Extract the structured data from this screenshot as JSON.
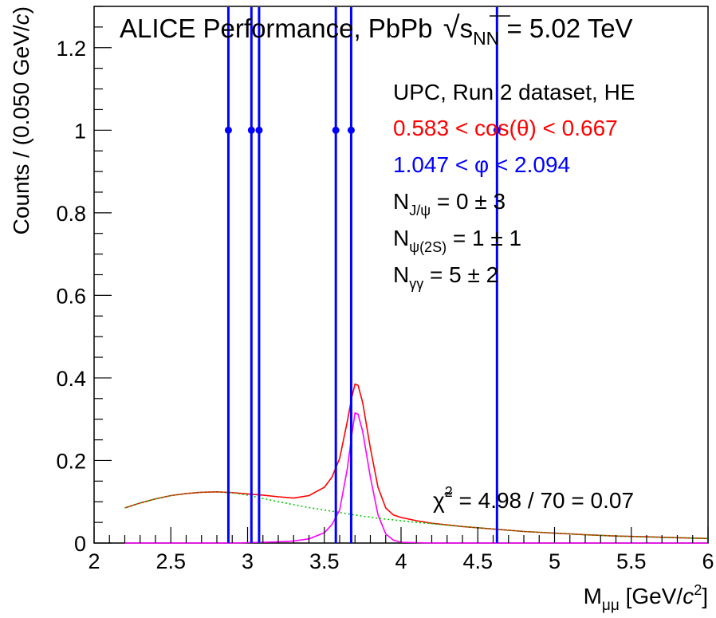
{
  "chart_data": {
    "type": "scatter",
    "title": "ALICE Performance, PbPb √sNN = 5.02 TeV",
    "title_parts": {
      "prefix": "ALICE Performance, PbPb ",
      "s": "s",
      "sub": "NN",
      "suffix": " = 5.02 TeV"
    },
    "xlabel": "Mμμ [GeV/c²]",
    "xlabel_parts": {
      "main": "M",
      "sub": "μμ",
      "unit_pre": " [GeV/",
      "unit_c": "c",
      "unit_sup": "2",
      "unit_post": "]"
    },
    "ylabel": "Counts / (0.050 GeV/c)",
    "ylabel_parts": {
      "pre": "Counts / (0.050 GeV/",
      "c": "c",
      "post": ")"
    },
    "xlim": [
      2,
      6
    ],
    "ylim": [
      0,
      1.3
    ],
    "xticks": [
      2,
      2.5,
      3,
      3.5,
      4,
      4.5,
      5,
      5.5,
      6
    ],
    "xtick_labels": [
      "2",
      "2.5",
      "3",
      "3.5",
      "4",
      "4.5",
      "5",
      "5.5",
      "6"
    ],
    "yticks": [
      0,
      0.2,
      0.4,
      0.6,
      0.8,
      1,
      1.2
    ],
    "ytick_labels": [
      "0",
      "0.2",
      "0.4",
      "0.6",
      "0.8",
      "1",
      "1.2"
    ],
    "grid": false,
    "legend": "none",
    "data_points": {
      "x": [
        2.875,
        3.025,
        3.075,
        3.575,
        3.675,
        4.625
      ],
      "y": [
        1,
        1,
        1,
        1,
        1,
        1
      ],
      "color": "#0000ff"
    },
    "curves": {
      "x": [
        2.2,
        2.3,
        2.4,
        2.5,
        2.6,
        2.7,
        2.8,
        2.9,
        3.0,
        3.1,
        3.2,
        3.3,
        3.4,
        3.5,
        3.55,
        3.6,
        3.65,
        3.68,
        3.7,
        3.72,
        3.75,
        3.8,
        3.85,
        3.9,
        3.95,
        4.0,
        4.1,
        4.2,
        4.4,
        4.6,
        4.8,
        5.0,
        5.2,
        5.4,
        5.6,
        5.8,
        6.0
      ],
      "series": [
        {
          "color": "#ff0000",
          "values": [
            0.085,
            0.097,
            0.107,
            0.115,
            0.12,
            0.123,
            0.124,
            0.122,
            0.119,
            0.116,
            0.112,
            0.109,
            0.115,
            0.135,
            0.16,
            0.205,
            0.295,
            0.355,
            0.385,
            0.382,
            0.34,
            0.23,
            0.135,
            0.085,
            0.068,
            0.062,
            0.054,
            0.048,
            0.04,
            0.034,
            0.028,
            0.024,
            0.02,
            0.017,
            0.015,
            0.013,
            0.011
          ]
        },
        {
          "color": "#00cc00",
          "style": "dotted",
          "values": [
            0.085,
            0.097,
            0.107,
            0.115,
            0.12,
            0.123,
            0.124,
            0.122,
            0.116,
            0.108,
            0.1,
            0.093,
            0.086,
            0.08,
            0.077,
            0.074,
            0.071,
            0.069,
            0.068,
            0.067,
            0.065,
            0.063,
            0.06,
            0.058,
            0.056,
            0.054,
            0.05,
            0.047,
            0.04,
            0.034,
            0.028,
            0.024,
            0.02,
            0.017,
            0.015,
            0.013,
            0.011
          ]
        },
        {
          "color": "#ff00ff",
          "values": [
            0,
            0,
            0,
            0,
            0,
            0,
            0,
            0,
            0.001,
            0.002,
            0.003,
            0.005,
            0.01,
            0.025,
            0.045,
            0.08,
            0.18,
            0.265,
            0.315,
            0.312,
            0.27,
            0.16,
            0.068,
            0.022,
            0.007,
            0.002,
            0.001,
            0,
            0,
            0,
            0,
            0,
            0,
            0,
            0,
            0,
            0
          ]
        }
      ]
    },
    "annotations": [
      {
        "text": "UPC, Run 2 dataset, HE",
        "color": "#000000"
      },
      {
        "text": "0.583 < cos(θ) < 0.667",
        "color": "#ff0000"
      },
      {
        "text": "1.047 < φ < 2.094",
        "color": "#0000ff"
      },
      {
        "text": "NJ/ψ = 0 ± 3",
        "main": "N",
        "sub": "J/ψ",
        "rest": " = 0 ± 3",
        "color": "#000000"
      },
      {
        "text": "Nψ(2S) = 1 ± 1",
        "main": "N",
        "sub": "ψ(2S)",
        "rest": " = 1 ± 1",
        "color": "#000000"
      },
      {
        "text": "Nγγ = 5 ± 2",
        "main": "N",
        "sub": "γγ",
        "rest": " = 5 ± 2",
        "color": "#000000"
      }
    ],
    "chi2_label": {
      "text": "χ̃² = 4.98 / 70 = 0.07",
      "symbol": "χ̃",
      "sup": "2",
      "rest": " = 4.98 / 70 = 0.07"
    }
  }
}
